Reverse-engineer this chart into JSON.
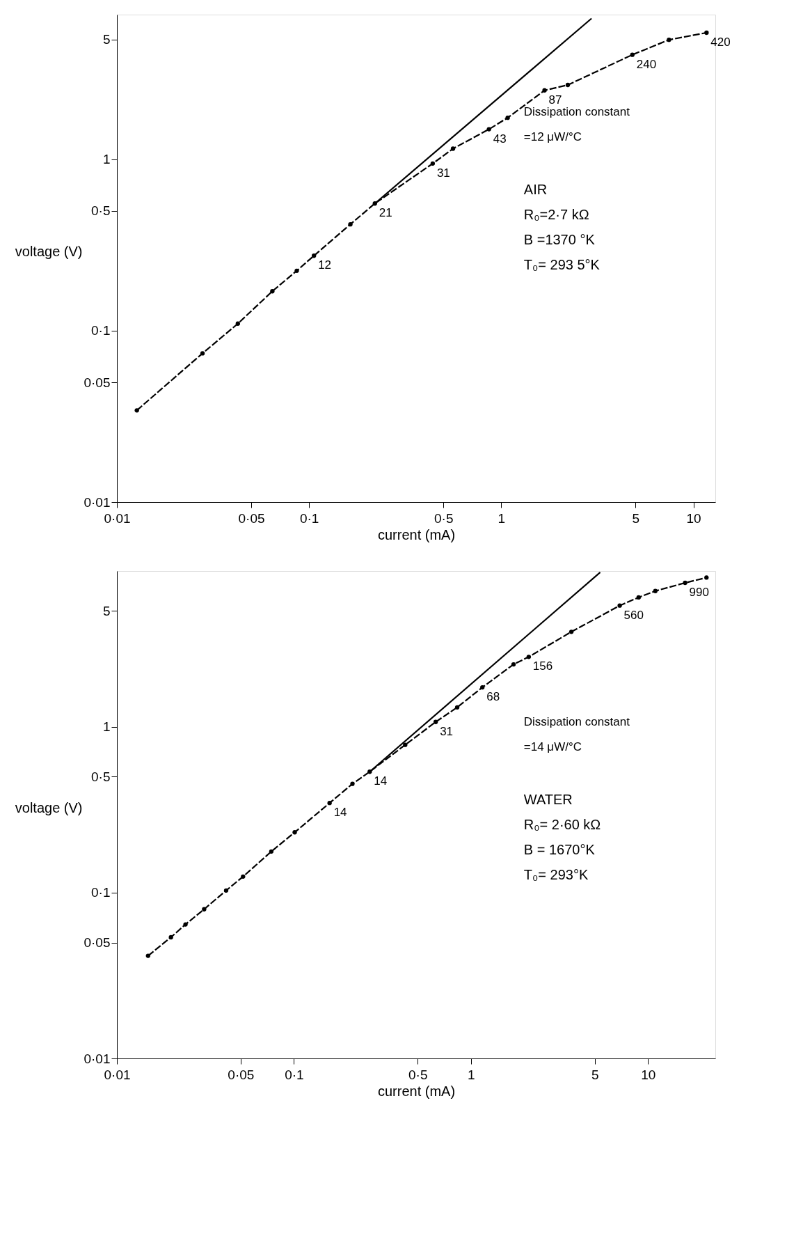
{
  "chart_data": [
    {
      "type": "line",
      "xlabel": "current (mA)",
      "ylabel": "voltage (V)",
      "log": "xy",
      "grid": false,
      "legend": false,
      "xlim": [
        0.01,
        13
      ],
      "ylim": [
        0.01,
        7
      ],
      "xticks": [
        {
          "value": 0.01,
          "label": "0·01"
        },
        {
          "value": 0.05,
          "label": "0·05"
        },
        {
          "value": 0.1,
          "label": "0·1"
        },
        {
          "value": 0.5,
          "label": "0·5"
        },
        1,
        5,
        10
      ],
      "yticks": [
        {
          "value": 0.01,
          "label": "0·01"
        },
        {
          "value": 0.05,
          "label": "0·05"
        },
        {
          "value": 0.1,
          "label": "0·1"
        },
        {
          "value": 0.5,
          "label": "0·5"
        },
        1,
        5
      ],
      "series": [
        {
          "color": "#000000",
          "marker": "circle",
          "line_style": "dashed",
          "x": [
            0.0127,
            0.0279,
            0.0426,
            0.0644,
            0.0863,
            0.106,
            0.164,
            0.22,
            0.44,
            0.561,
            0.863,
            1.08,
            1.68,
            2.22,
            4.81,
            7.46,
            11.7
          ],
          "values": [
            0.0343,
            0.0738,
            0.11,
            0.17,
            0.224,
            0.274,
            0.418,
            0.553,
            0.946,
            1.155,
            1.5,
            1.75,
            2.53,
            2.72,
            4.08,
            4.99,
            5.49
          ]
        },
        {
          "color": "#000000",
          "marker": "none",
          "line_style": "solid",
          "x": [
            0.22,
            2.95
          ],
          "values": [
            0.553,
            6.65
          ]
        }
      ],
      "annotations": [
        {
          "text": "12",
          "x": 0.106,
          "y": 0.274
        },
        {
          "text": "21",
          "x": 0.22,
          "y": 0.553
        },
        {
          "text": "31",
          "x": 0.44,
          "y": 0.946
        },
        {
          "text": "43",
          "x": 0.863,
          "y": 1.5
        },
        {
          "text": "87",
          "x": 1.68,
          "y": 2.53
        },
        {
          "text": "240",
          "x": 4.81,
          "y": 4.08
        },
        {
          "text": "420",
          "x": 11.7,
          "y": 5.49
        },
        "Dissipation constant",
        "=12 μW/°C",
        "AIR",
        "R₀=2·7 kΩ",
        "B =1370 °K",
        "T₀= 293 5°K"
      ]
    },
    {
      "type": "line",
      "xlabel": "current (mA)",
      "ylabel": "voltage (V)",
      "log": "xy",
      "grid": false,
      "legend": false,
      "xlim": [
        0.01,
        24
      ],
      "ylim": [
        0.01,
        8.7
      ],
      "xticks": [
        {
          "value": 0.01,
          "label": "0·01"
        },
        {
          "value": 0.05,
          "label": "0·05"
        },
        {
          "value": 0.1,
          "label": "0·1"
        },
        {
          "value": 0.5,
          "label": "0·5"
        },
        1,
        5,
        10
      ],
      "yticks": [
        {
          "value": 0.01,
          "label": "0·01"
        },
        {
          "value": 0.05,
          "label": "0·05"
        },
        {
          "value": 0.1,
          "label": "0·1"
        },
        {
          "value": 0.5,
          "label": "0·5"
        },
        1,
        5
      ],
      "series": [
        {
          "color": "#000000",
          "marker": "circle",
          "line_style": "dashed",
          "x": [
            0.015,
            0.0202,
            0.0244,
            0.0311,
            0.0414,
            0.0516,
            0.0745,
            0.101,
            0.159,
            0.214,
            0.268,
            0.425,
            0.632,
            0.836,
            1.16,
            1.74,
            2.12,
            3.69,
            6.92,
            8.85,
            11.0,
            16.2,
            21.4
          ],
          "values": [
            0.0416,
            0.0538,
            0.0643,
            0.0794,
            0.103,
            0.125,
            0.177,
            0.231,
            0.347,
            0.453,
            0.536,
            0.778,
            1.07,
            1.31,
            1.73,
            2.38,
            2.64,
            3.74,
            5.38,
            6.03,
            6.59,
            7.38,
            7.94
          ]
        },
        {
          "color": "#000000",
          "marker": "none",
          "line_style": "solid",
          "x": [
            0.268,
            5.37
          ],
          "values": [
            0.536,
            8.54
          ]
        }
      ],
      "annotations": [
        {
          "text": "14",
          "x": 0.159,
          "y": 0.347
        },
        {
          "text": "14",
          "x": 0.268,
          "y": 0.536
        },
        {
          "text": "31",
          "x": 0.632,
          "y": 1.07
        },
        {
          "text": "68",
          "x": 1.16,
          "y": 1.73
        },
        {
          "text": "156",
          "x": 2.12,
          "y": 2.64
        },
        {
          "text": "560",
          "x": 6.92,
          "y": 5.38
        },
        {
          "text": "990",
          "x": 16.2,
          "y": 7.38
        },
        "Dissipation constant",
        "=14 μW/°C",
        "WATER",
        "R₀= 2·60 kΩ",
        "B = 1670°K",
        "T₀= 293°K"
      ]
    }
  ]
}
